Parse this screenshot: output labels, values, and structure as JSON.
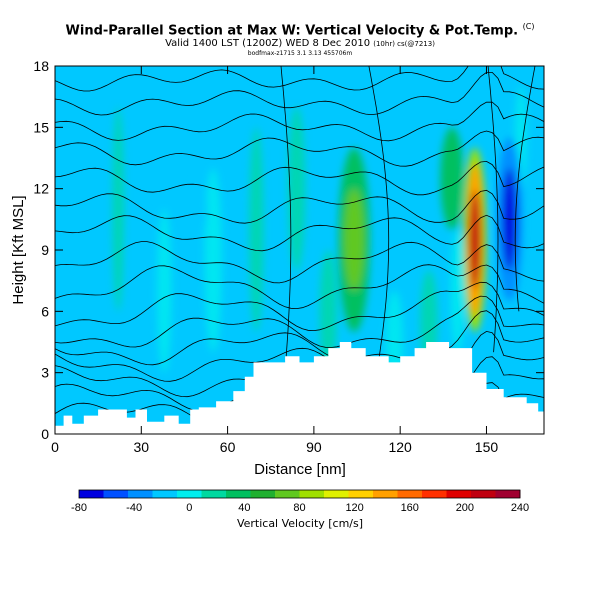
{
  "header": {
    "title": "Wind-Parallel Section at Max W: Vertical Velocity & Pot.Temp.",
    "title_mark": "(C)",
    "subtitle": "Valid 1400 LST (1200Z) WED 8 Dec 2010",
    "subtitle_small": "(10hr) cs(@7213)",
    "meta": "bodfmax-z1715 3.1 3.13 455706m"
  },
  "chart_data": {
    "type": "heatmap",
    "title": "Wind-Parallel Section at Max W: Vertical Velocity & Pot.Temp.",
    "xlabel": "Distance [nm]",
    "ylabel": "Height [Kft MSL]",
    "xlim": [
      0,
      170
    ],
    "ylim": [
      0,
      18
    ],
    "xticks": [
      "0",
      "30",
      "60",
      "90",
      "120",
      "150"
    ],
    "xtick_values": [
      0,
      30,
      60,
      90,
      120,
      150
    ],
    "yticks": [
      "0",
      "3",
      "6",
      "9",
      "12",
      "15",
      "18"
    ],
    "ytick_values": [
      0,
      3,
      6,
      9,
      12,
      15,
      18
    ],
    "colorbar": {
      "title": "Vertical Velocity [cm/s]",
      "labels": [
        "-80",
        "-40",
        "0",
        "40",
        "80",
        "120",
        "160",
        "200",
        "240"
      ],
      "label_values": [
        -80,
        -40,
        0,
        40,
        80,
        120,
        160,
        200,
        240
      ],
      "colors": [
        "#0000e0",
        "#0050ff",
        "#0090ff",
        "#00c8ff",
        "#00eeee",
        "#00d9a0",
        "#00c060",
        "#20b030",
        "#60c820",
        "#a0e000",
        "#e0f000",
        "#ffd000",
        "#ffa000",
        "#ff6a00",
        "#ff3000",
        "#e00000",
        "#c00010",
        "#a00030"
      ]
    },
    "terrain_kft": [
      [
        0,
        0.4
      ],
      [
        3,
        0.4
      ],
      [
        3,
        0.9
      ],
      [
        6,
        0.9
      ],
      [
        6,
        0.5
      ],
      [
        10,
        0.5
      ],
      [
        10,
        0.9
      ],
      [
        15,
        0.9
      ],
      [
        15,
        1.2
      ],
      [
        25,
        1.2
      ],
      [
        25,
        0.8
      ],
      [
        28,
        0.8
      ],
      [
        28,
        1.2
      ],
      [
        32,
        1.2
      ],
      [
        32,
        0.6
      ],
      [
        38,
        0.6
      ],
      [
        38,
        0.9
      ],
      [
        43,
        0.9
      ],
      [
        43,
        0.5
      ],
      [
        47,
        0.5
      ],
      [
        47,
        1.2
      ],
      [
        50,
        1.2
      ],
      [
        50,
        1.3
      ],
      [
        56,
        1.3
      ],
      [
        56,
        1.6
      ],
      [
        62,
        1.6
      ],
      [
        62,
        2.1
      ],
      [
        66,
        2.1
      ],
      [
        66,
        2.8
      ],
      [
        69,
        2.8
      ],
      [
        69,
        3.5
      ],
      [
        80,
        3.5
      ],
      [
        80,
        3.8
      ],
      [
        85,
        3.8
      ],
      [
        85,
        3.5
      ],
      [
        90,
        3.5
      ],
      [
        90,
        3.8
      ],
      [
        95,
        3.8
      ],
      [
        95,
        4.2
      ],
      [
        99,
        4.2
      ],
      [
        99,
        4.5
      ],
      [
        103,
        4.5
      ],
      [
        103,
        4.2
      ],
      [
        108,
        4.2
      ],
      [
        108,
        3.8
      ],
      [
        116,
        3.8
      ],
      [
        116,
        3.5
      ],
      [
        120,
        3.5
      ],
      [
        120,
        3.8
      ],
      [
        125,
        3.8
      ],
      [
        125,
        4.2
      ],
      [
        129,
        4.2
      ],
      [
        129,
        4.5
      ],
      [
        137,
        4.5
      ],
      [
        137,
        4.2
      ],
      [
        145,
        4.2
      ],
      [
        145,
        3.0
      ],
      [
        150,
        3.0
      ],
      [
        150,
        2.2
      ],
      [
        156,
        2.2
      ],
      [
        156,
        1.8
      ],
      [
        164,
        1.8
      ],
      [
        164,
        1.5
      ],
      [
        168,
        1.5
      ],
      [
        168,
        1.1
      ],
      [
        170,
        1.1
      ],
      [
        170,
        0
      ]
    ],
    "features": [
      {
        "x": 146,
        "y": 9.5,
        "w": 4,
        "h": 4.8,
        "value": 240,
        "note": "updraft core"
      },
      {
        "x": 146,
        "y": 9.5,
        "w": 6,
        "h": 7.5,
        "value": 160
      },
      {
        "x": 146,
        "y": 9.5,
        "w": 8,
        "h": 9,
        "value": 100
      },
      {
        "x": 158,
        "y": 10.5,
        "w": 5,
        "h": 5,
        "value": -80,
        "note": "downdraft core"
      },
      {
        "x": 158,
        "y": 10.5,
        "w": 9,
        "h": 8,
        "value": -40
      },
      {
        "x": 104,
        "y": 9.5,
        "w": 7,
        "h": 5,
        "value": 90
      },
      {
        "x": 104,
        "y": 9.5,
        "w": 11,
        "h": 9,
        "value": 50
      },
      {
        "x": 30,
        "y": 9.2,
        "w": 8,
        "h": 3.5,
        "value": -20
      },
      {
        "x": 50,
        "y": 11,
        "w": 6,
        "h": 3,
        "value": -15
      },
      {
        "x": 138,
        "y": 12.5,
        "w": 8,
        "h": 5,
        "value": 40
      }
    ]
  }
}
